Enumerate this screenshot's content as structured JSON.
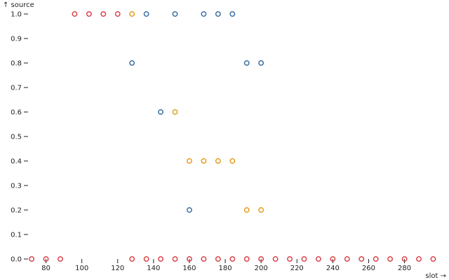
{
  "chart_data": {
    "type": "scatter",
    "title": "",
    "xlabel": "slot →",
    "ylabel": "↑ source",
    "xlim": [
      70,
      297
    ],
    "ylim": [
      0,
      1
    ],
    "x_ticks": [
      80,
      100,
      120,
      140,
      160,
      180,
      200,
      220,
      240,
      260,
      280
    ],
    "y_ticks": [
      0.0,
      0.1,
      0.2,
      0.3,
      0.4,
      0.5,
      0.6,
      0.7,
      0.8,
      0.9,
      1.0
    ],
    "grid": false,
    "legend": "none",
    "colors": {
      "red": "#d9434b",
      "orange": "#e69c1c",
      "blue": "#3a6fa2"
    },
    "points": [
      {
        "x": 72,
        "y": 0.0,
        "color": "red"
      },
      {
        "x": 80,
        "y": 0.0,
        "color": "red"
      },
      {
        "x": 88,
        "y": 0.0,
        "color": "red"
      },
      {
        "x": 96,
        "y": 1.0,
        "color": "red"
      },
      {
        "x": 104,
        "y": 1.0,
        "color": "red"
      },
      {
        "x": 112,
        "y": 1.0,
        "color": "red"
      },
      {
        "x": 120,
        "y": 1.0,
        "color": "red"
      },
      {
        "x": 128,
        "y": 1.0,
        "color": "orange"
      },
      {
        "x": 136,
        "y": 1.0,
        "color": "blue"
      },
      {
        "x": 152,
        "y": 1.0,
        "color": "blue"
      },
      {
        "x": 168,
        "y": 1.0,
        "color": "blue"
      },
      {
        "x": 176,
        "y": 1.0,
        "color": "blue"
      },
      {
        "x": 184,
        "y": 1.0,
        "color": "blue"
      },
      {
        "x": 128,
        "y": 0.8,
        "color": "blue"
      },
      {
        "x": 192,
        "y": 0.8,
        "color": "blue"
      },
      {
        "x": 200,
        "y": 0.8,
        "color": "blue"
      },
      {
        "x": 144,
        "y": 0.6,
        "color": "blue"
      },
      {
        "x": 152,
        "y": 0.6,
        "color": "orange"
      },
      {
        "x": 160,
        "y": 0.4,
        "color": "orange"
      },
      {
        "x": 168,
        "y": 0.4,
        "color": "orange"
      },
      {
        "x": 176,
        "y": 0.4,
        "color": "orange"
      },
      {
        "x": 184,
        "y": 0.4,
        "color": "orange"
      },
      {
        "x": 160,
        "y": 0.2,
        "color": "blue"
      },
      {
        "x": 192,
        "y": 0.2,
        "color": "orange"
      },
      {
        "x": 200,
        "y": 0.2,
        "color": "orange"
      },
      {
        "x": 128,
        "y": 0.0,
        "color": "red"
      },
      {
        "x": 136,
        "y": 0.0,
        "color": "red"
      },
      {
        "x": 144,
        "y": 0.0,
        "color": "red"
      },
      {
        "x": 152,
        "y": 0.0,
        "color": "red"
      },
      {
        "x": 160,
        "y": 0.0,
        "color": "red"
      },
      {
        "x": 168,
        "y": 0.0,
        "color": "red"
      },
      {
        "x": 176,
        "y": 0.0,
        "color": "red"
      },
      {
        "x": 184,
        "y": 0.0,
        "color": "red"
      },
      {
        "x": 192,
        "y": 0.0,
        "color": "red"
      },
      {
        "x": 200,
        "y": 0.0,
        "color": "red"
      },
      {
        "x": 208,
        "y": 0.0,
        "color": "red"
      },
      {
        "x": 216,
        "y": 0.0,
        "color": "red"
      },
      {
        "x": 224,
        "y": 0.0,
        "color": "red"
      },
      {
        "x": 232,
        "y": 0.0,
        "color": "red"
      },
      {
        "x": 240,
        "y": 0.0,
        "color": "red"
      },
      {
        "x": 248,
        "y": 0.0,
        "color": "red"
      },
      {
        "x": 256,
        "y": 0.0,
        "color": "red"
      },
      {
        "x": 264,
        "y": 0.0,
        "color": "red"
      },
      {
        "x": 272,
        "y": 0.0,
        "color": "red"
      },
      {
        "x": 280,
        "y": 0.0,
        "color": "red"
      },
      {
        "x": 288,
        "y": 0.0,
        "color": "red"
      },
      {
        "x": 296,
        "y": 0.0,
        "color": "red"
      }
    ]
  }
}
